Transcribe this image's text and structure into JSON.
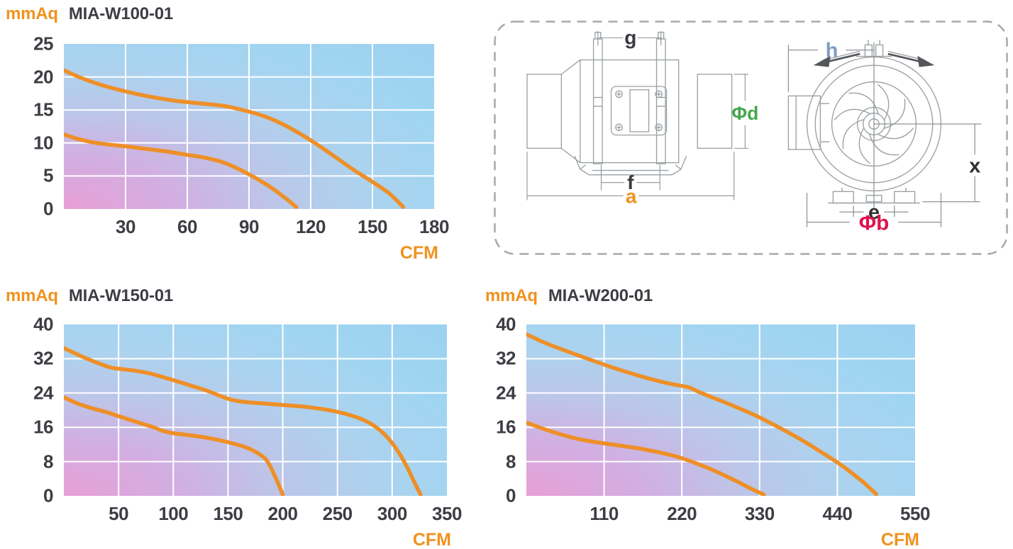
{
  "colors": {
    "curve": "#ee8f27",
    "grid": "#ffffff",
    "accent_orange": "#f0921e",
    "title_dark": "#3d3d44",
    "gradient_pink": "#e89fd6",
    "gradient_blue": "#9cd2f0",
    "diagram_line": "#9aa0a4",
    "diagram_dim_line": "#8f9396",
    "diagram_arrow_dark": "#55565a",
    "panel_border": "#a8a8a8"
  },
  "chart_data": [
    {
      "type": "line",
      "title": "MIA-W100-01",
      "ylabel": "mmAq",
      "xlabel": "CFM",
      "xlim": [
        0,
        180
      ],
      "ylim": [
        0,
        25
      ],
      "x_ticks": [
        30,
        60,
        90,
        120,
        150,
        180
      ],
      "y_ticks": [
        0,
        5,
        10,
        15,
        20,
        25
      ],
      "grid": true,
      "legend": "none",
      "series": [
        {
          "name": "curve-high-speed",
          "points": [
            [
              0,
              21
            ],
            [
              8,
              19.9
            ],
            [
              18,
              18.8
            ],
            [
              30,
              17.8
            ],
            [
              42,
              17
            ],
            [
              54,
              16.4
            ],
            [
              66,
              16
            ],
            [
              78,
              15.6
            ],
            [
              88,
              14.9
            ],
            [
              96,
              14.2
            ],
            [
              104,
              13.2
            ],
            [
              112,
              11.9
            ],
            [
              120,
              10.4
            ],
            [
              130,
              8.3
            ],
            [
              140,
              6.1
            ],
            [
              150,
              4.1
            ],
            [
              158,
              2.4
            ],
            [
              165,
              0.3
            ]
          ]
        },
        {
          "name": "curve-low-speed",
          "points": [
            [
              0,
              11.3
            ],
            [
              8,
              10.5
            ],
            [
              18,
              9.9
            ],
            [
              30,
              9.5
            ],
            [
              40,
              9.1
            ],
            [
              50,
              8.7
            ],
            [
              60,
              8.2
            ],
            [
              68,
              7.8
            ],
            [
              76,
              7.2
            ],
            [
              84,
              6.2
            ],
            [
              92,
              4.9
            ],
            [
              100,
              3.4
            ],
            [
              107,
              1.8
            ],
            [
              113,
              0.3
            ]
          ]
        }
      ]
    },
    {
      "type": "line",
      "title": "MIA-W150-01",
      "ylabel": "mmAq",
      "xlabel": "CFM",
      "xlim": [
        0,
        350
      ],
      "ylim": [
        0,
        40
      ],
      "x_ticks": [
        50,
        100,
        150,
        200,
        250,
        300,
        350
      ],
      "y_ticks": [
        0,
        8,
        16,
        24,
        32,
        40
      ],
      "grid": true,
      "legend": "none",
      "series": [
        {
          "name": "curve-high-speed",
          "points": [
            [
              0,
              34.5
            ],
            [
              15,
              32.7
            ],
            [
              30,
              31.1
            ],
            [
              42,
              30
            ],
            [
              52,
              29.6
            ],
            [
              65,
              29.2
            ],
            [
              78,
              28.6
            ],
            [
              88,
              27.9
            ],
            [
              100,
              27
            ],
            [
              115,
              25.8
            ],
            [
              130,
              24.6
            ],
            [
              142,
              23.4
            ],
            [
              152,
              22.5
            ],
            [
              162,
              22
            ],
            [
              175,
              21.7
            ],
            [
              190,
              21.4
            ],
            [
              205,
              21.1
            ],
            [
              220,
              20.8
            ],
            [
              235,
              20.3
            ],
            [
              250,
              19.6
            ],
            [
              262,
              18.8
            ],
            [
              272,
              17.9
            ],
            [
              282,
              16.6
            ],
            [
              292,
              14.6
            ],
            [
              300,
              12.3
            ],
            [
              308,
              9.3
            ],
            [
              315,
              6
            ],
            [
              321,
              2.8
            ],
            [
              326,
              0.3
            ]
          ]
        },
        {
          "name": "curve-low-speed",
          "points": [
            [
              0,
              23
            ],
            [
              12,
              21.6
            ],
            [
              25,
              20.5
            ],
            [
              38,
              19.6
            ],
            [
              50,
              18.6
            ],
            [
              62,
              17.6
            ],
            [
              72,
              16.8
            ],
            [
              82,
              16
            ],
            [
              90,
              15.2
            ],
            [
              98,
              14.7
            ],
            [
              110,
              14.3
            ],
            [
              125,
              13.8
            ],
            [
              140,
              13.1
            ],
            [
              152,
              12.4
            ],
            [
              163,
              11.6
            ],
            [
              172,
              10.7
            ],
            [
              180,
              9.5
            ],
            [
              185,
              8.4
            ],
            [
              189,
              6.7
            ],
            [
              193,
              4.5
            ],
            [
              197,
              2.2
            ],
            [
              200,
              0.3
            ]
          ]
        }
      ]
    },
    {
      "type": "line",
      "title": "MIA-W200-01",
      "ylabel": "mmAq",
      "xlabel": "CFM",
      "xlim": [
        0,
        550
      ],
      "ylim": [
        0,
        40
      ],
      "x_ticks": [
        110,
        220,
        330,
        440,
        550
      ],
      "y_ticks": [
        0,
        8,
        16,
        24,
        32,
        40
      ],
      "grid": true,
      "legend": "none",
      "series": [
        {
          "name": "curve-high-speed",
          "points": [
            [
              0,
              37.7
            ],
            [
              25,
              35.8
            ],
            [
              50,
              34.2
            ],
            [
              75,
              32.7
            ],
            [
              100,
              31.2
            ],
            [
              125,
              29.8
            ],
            [
              150,
              28.5
            ],
            [
              175,
              27.3
            ],
            [
              200,
              26.3
            ],
            [
              215,
              25.8
            ],
            [
              230,
              25.3
            ],
            [
              242,
              24.4
            ],
            [
              255,
              23.5
            ],
            [
              275,
              22.2
            ],
            [
              300,
              20.5
            ],
            [
              325,
              18.7
            ],
            [
              350,
              16.6
            ],
            [
              375,
              14.4
            ],
            [
              400,
              12
            ],
            [
              420,
              9.9
            ],
            [
              440,
              7.8
            ],
            [
              460,
              5.4
            ],
            [
              478,
              3
            ],
            [
              495,
              0.4
            ]
          ]
        },
        {
          "name": "curve-low-speed",
          "points": [
            [
              0,
              17.1
            ],
            [
              25,
              15.6
            ],
            [
              50,
              14.3
            ],
            [
              75,
              13.2
            ],
            [
              100,
              12.5
            ],
            [
              125,
              11.9
            ],
            [
              150,
              11.3
            ],
            [
              175,
              10.6
            ],
            [
              200,
              9.7
            ],
            [
              220,
              8.8
            ],
            [
              240,
              7.6
            ],
            [
              260,
              6.3
            ],
            [
              280,
              4.8
            ],
            [
              300,
              3.2
            ],
            [
              320,
              1.5
            ],
            [
              336,
              0.3
            ]
          ]
        }
      ]
    }
  ],
  "diagram": {
    "labels": {
      "g": {
        "text": "g",
        "color": "#3a3a40"
      },
      "phi_d": {
        "text": "Φd",
        "color": "#47a64c"
      },
      "f": {
        "text": "f",
        "color": "#3a3a40"
      },
      "a": {
        "text": "a",
        "color": "#f0921e"
      },
      "h": {
        "text": "h",
        "color": "#7b9cc7"
      },
      "x": {
        "text": "x",
        "color": "#2f2f35"
      },
      "e": {
        "text": "e",
        "color": "#2f2f35"
      },
      "phi_b": {
        "text": "Φb",
        "color": "#e0134e"
      }
    }
  }
}
